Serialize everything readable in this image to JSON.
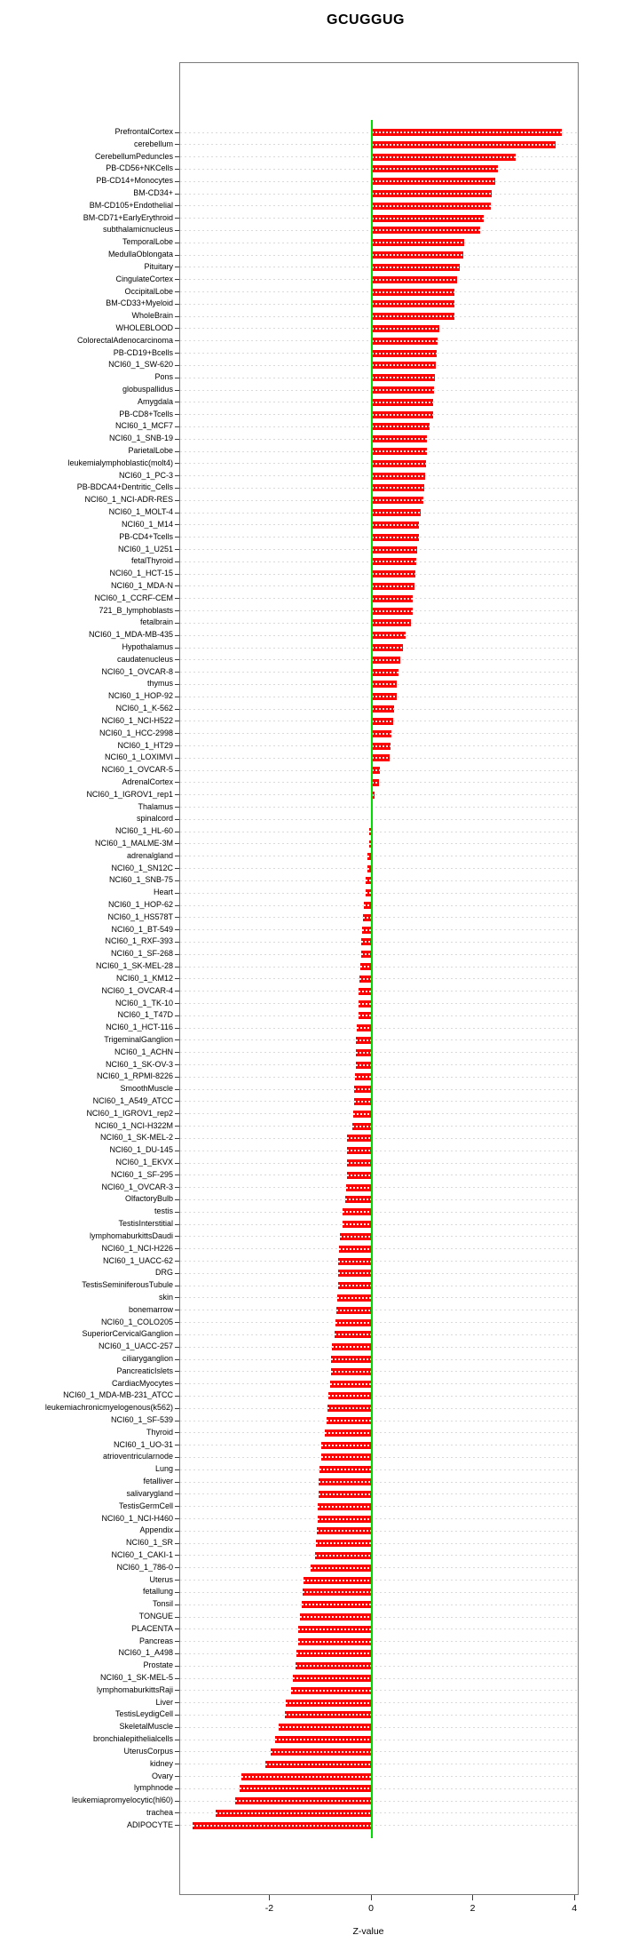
{
  "chart_data": {
    "type": "bar",
    "orientation": "horizontal",
    "title": "GCUGGUG",
    "xlabel": "Z-value",
    "x_ticks": [
      -2,
      0,
      2,
      4
    ],
    "xlim": [
      -3.77,
      4.08
    ],
    "grid": true,
    "legend": false,
    "bar_color": "#fe0000",
    "zero_line_color": "#00dd00",
    "grid_color": "#d9d9d9",
    "categories": [
      "PrefrontalCortex",
      "cerebellum",
      "CerebellumPeduncles",
      "PB-CD56+NKCells",
      "PB-CD14+Monocytes",
      "BM-CD34+",
      "BM-CD105+Endothelial",
      "BM-CD71+EarlyErythroid",
      "subthalamicnucleus",
      "TemporalLobe",
      "MedullaOblongata",
      "Pituitary",
      "CingulateCortex",
      "OccipitalLobe",
      "BM-CD33+Myeloid",
      "WholeBrain",
      "WHOLEBLOOD",
      "ColorectalAdenocarcinoma",
      "PB-CD19+Bcells",
      "NCI60_1_SW-620",
      "Pons",
      "globuspallidus",
      "Amygdala",
      "PB-CD8+Tcells",
      "NCI60_1_MCF7",
      "NCI60_1_SNB-19",
      "ParietalLobe",
      "leukemialymphoblastic(molt4)",
      "NCI60_1_PC-3",
      "PB-BDCA4+Dentritic_Cells",
      "NCI60_1_NCI-ADR-RES",
      "NCI60_1_MOLT-4",
      "NCI60_1_M14",
      "PB-CD4+Tcells",
      "NCI60_1_U251",
      "fetalThyroid",
      "NCI60_1_HCT-15",
      "NCI60_1_MDA-N",
      "NCI60_1_CCRF-CEM",
      "721_B_lymphoblasts",
      "fetalbrain",
      "NCI60_1_MDA-MB-435",
      "Hypothalamus",
      "caudatenucleus",
      "NCI60_1_OVCAR-8",
      "thymus",
      "NCI60_1_HOP-92",
      "NCI60_1_K-562",
      "NCI60_1_NCI-H522",
      "NCI60_1_HCC-2998",
      "NCI60_1_HT29",
      "NCI60_1_LOXIMVI",
      "NCI60_1_OVCAR-5",
      "AdrenalCortex",
      "NCI60_1_IGROV1_rep1",
      "Thalamus",
      "spinalcord",
      "NCI60_1_HL-60",
      "NCI60_1_MALME-3M",
      "adrenalgland",
      "NCI60_1_SN12C",
      "NCI60_1_SNB-75",
      "Heart",
      "NCI60_1_HOP-62",
      "NCI60_1_HS578T",
      "NCI60_1_BT-549",
      "NCI60_1_RXF-393",
      "NCI60_1_SF-268",
      "NCI60_1_SK-MEL-28",
      "NCI60_1_KM12",
      "NCI60_1_OVCAR-4",
      "NCI60_1_TK-10",
      "NCI60_1_T47D",
      "NCI60_1_HCT-116",
      "TrigeminalGanglion",
      "NCI60_1_ACHN",
      "NCI60_1_SK-OV-3",
      "NCI60_1_RPMI-8226",
      "SmoothMuscle",
      "NCI60_1_A549_ATCC",
      "NCI60_1_IGROV1_rep2",
      "NCI60_1_NCI-H322M",
      "NCI60_1_SK-MEL-2",
      "NCI60_1_DU-145",
      "NCI60_1_EKVX",
      "NCI60_1_SF-295",
      "NCI60_1_OVCAR-3",
      "OlfactoryBulb",
      "testis",
      "TestisInterstitial",
      "lymphomaburkittsDaudi",
      "NCI60_1_NCI-H226",
      "NCI60_1_UACC-62",
      "DRG",
      "TestisSeminiferousTubule",
      "skin",
      "bonemarrow",
      "NCI60_1_COLO205",
      "SuperiorCervicalGanglion",
      "NCI60_1_UACC-257",
      "ciliaryganglion",
      "PancreaticIslets",
      "CardiacMyocytes",
      "NCI60_1_MDA-MB-231_ATCC",
      "leukemiachronicmyelogenous(k562)",
      "NCI60_1_SF-539",
      "Thyroid",
      "NCI60_1_UO-31",
      "atrioventricularnode",
      "Lung",
      "fetalliver",
      "salivarygland",
      "TestisGermCell",
      "NCI60_1_NCI-H460",
      "Appendix",
      "NCI60_1_SR",
      "NCI60_1_CAKI-1",
      "NCI60_1_786-0",
      "Uterus",
      "fetallung",
      "Tonsil",
      "TONGUE",
      "PLACENTA",
      "Pancreas",
      "NCI60_1_A498",
      "Prostate",
      "NCI60_1_SK-MEL-5",
      "lymphomaburkittsRaji",
      "Liver",
      "TestisLeydigCell",
      "SkeletalMuscle",
      "bronchialepithelialcells",
      "UterusCorpus",
      "kidney",
      "Ovary",
      "lymphnode",
      "leukemiapromyelocytic(hl60)",
      "trachea",
      "ADIPOCYTE"
    ],
    "values": [
      3.73,
      3.61,
      2.83,
      2.48,
      2.43,
      2.35,
      2.33,
      2.2,
      2.13,
      1.81,
      1.79,
      1.72,
      1.67,
      1.63,
      1.62,
      1.62,
      1.33,
      1.3,
      1.27,
      1.25,
      1.24,
      1.23,
      1.21,
      1.2,
      1.14,
      1.08,
      1.08,
      1.07,
      1.05,
      1.03,
      1.02,
      0.96,
      0.93,
      0.93,
      0.89,
      0.87,
      0.86,
      0.84,
      0.81,
      0.81,
      0.76,
      0.67,
      0.61,
      0.55,
      0.53,
      0.48,
      0.48,
      0.43,
      0.42,
      0.38,
      0.37,
      0.35,
      0.16,
      0.14,
      0.06,
      0.02,
      -0.02,
      -0.05,
      -0.05,
      -0.09,
      -0.09,
      -0.12,
      -0.13,
      -0.16,
      -0.18,
      -0.2,
      -0.21,
      -0.21,
      -0.23,
      -0.25,
      -0.26,
      -0.27,
      -0.27,
      -0.29,
      -0.31,
      -0.31,
      -0.32,
      -0.34,
      -0.35,
      -0.35,
      -0.36,
      -0.38,
      -0.48,
      -0.48,
      -0.49,
      -0.49,
      -0.5,
      -0.52,
      -0.57,
      -0.58,
      -0.63,
      -0.65,
      -0.66,
      -0.67,
      -0.67,
      -0.68,
      -0.69,
      -0.71,
      -0.74,
      -0.78,
      -0.81,
      -0.81,
      -0.82,
      -0.86,
      -0.87,
      -0.89,
      -0.92,
      -1.0,
      -1.0,
      -1.03,
      -1.04,
      -1.05,
      -1.06,
      -1.07,
      -1.08,
      -1.1,
      -1.11,
      -1.2,
      -1.34,
      -1.36,
      -1.38,
      -1.41,
      -1.44,
      -1.44,
      -1.49,
      -1.5,
      -1.56,
      -1.58,
      -1.69,
      -1.71,
      -1.83,
      -1.91,
      -1.99,
      -2.1,
      -2.57,
      -2.6,
      -2.68,
      -3.07,
      -3.52
    ]
  }
}
